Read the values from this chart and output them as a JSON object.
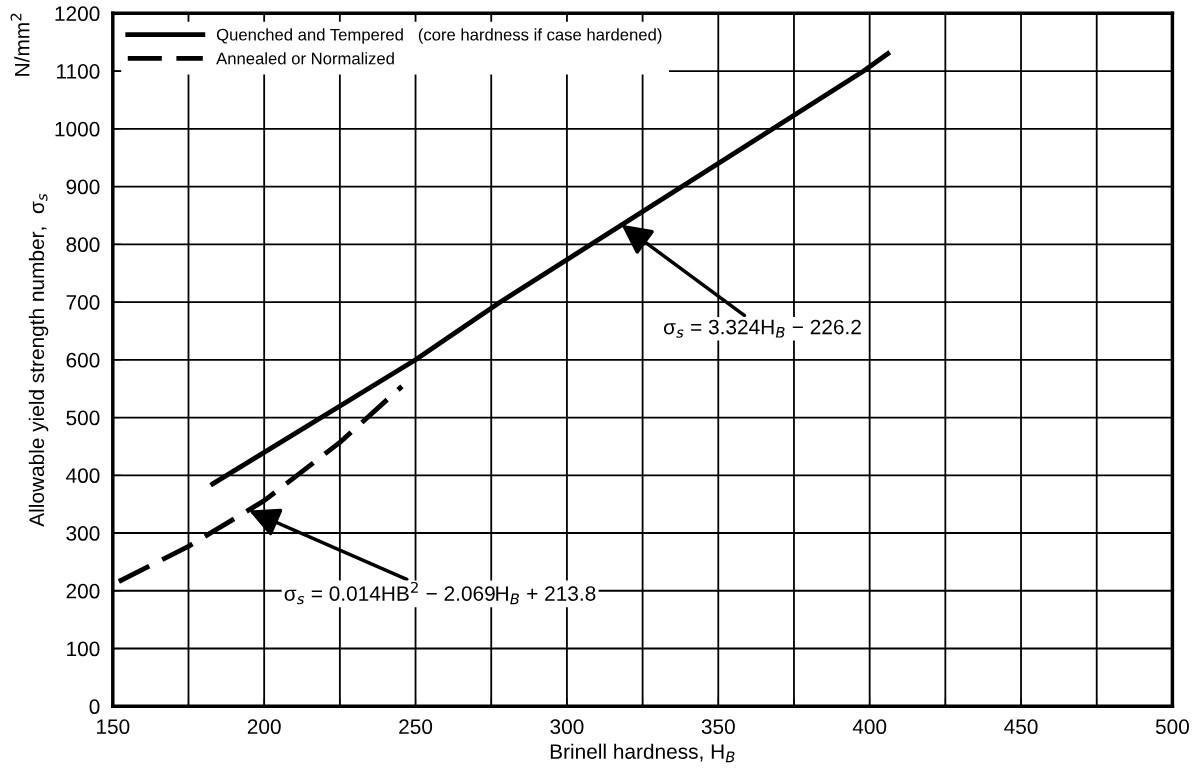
{
  "chart_data": {
    "type": "line",
    "xlabel": "Brinell hardness, H$_{B}$",
    "ylabel": "Allowable yield strength number,  σ$_{s}$",
    "series": [
      {
        "name": "Quenched and Tempered   (core hardness if case hardened)",
        "color": "#000000",
        "line_style": "solid",
        "x": [
          183,
          250,
          278,
          398,
          406
        ],
        "values": [
          385,
          600,
          700,
          1100,
          1130
        ]
      },
      {
        "name": "Annealed or Normalized",
        "color": "#000000",
        "line_style": "dashed",
        "x": [
          152,
          175,
          200,
          225,
          245.5
        ],
        "values": [
          216,
          277,
          356,
          457,
          554
        ]
      }
    ],
    "annotations": [
      "N/mm$^{2}$",
      {
        "text": "σ$_{s}$ = 3.324H$_{B}$ − 226.2",
        "x": 318,
        "y": 834
      },
      {
        "text": "σ$_{s}$ = 0.014HB$^{2}$ − 2.069H$_{B}$ + 213.8",
        "x": 195,
        "y": 339
      }
    ],
    "xlim": [
      150,
      500
    ],
    "ylim": [
      0,
      1200
    ],
    "xticks": [
      150,
      {
        "value": 175,
        "label": null
      },
      200,
      {
        "value": 225,
        "label": null
      },
      250,
      {
        "value": 275,
        "label": null
      },
      300,
      {
        "value": 325,
        "label": null
      },
      350,
      {
        "value": 375,
        "label": null
      },
      400,
      {
        "value": 425,
        "label": null
      },
      450,
      {
        "value": 475,
        "label": null
      },
      500
    ],
    "yticks": [
      0,
      100,
      200,
      300,
      400,
      500,
      600,
      700,
      800,
      900,
      1000,
      1100,
      1200
    ],
    "grid": true,
    "legend": "top left",
    "marker": "none"
  }
}
